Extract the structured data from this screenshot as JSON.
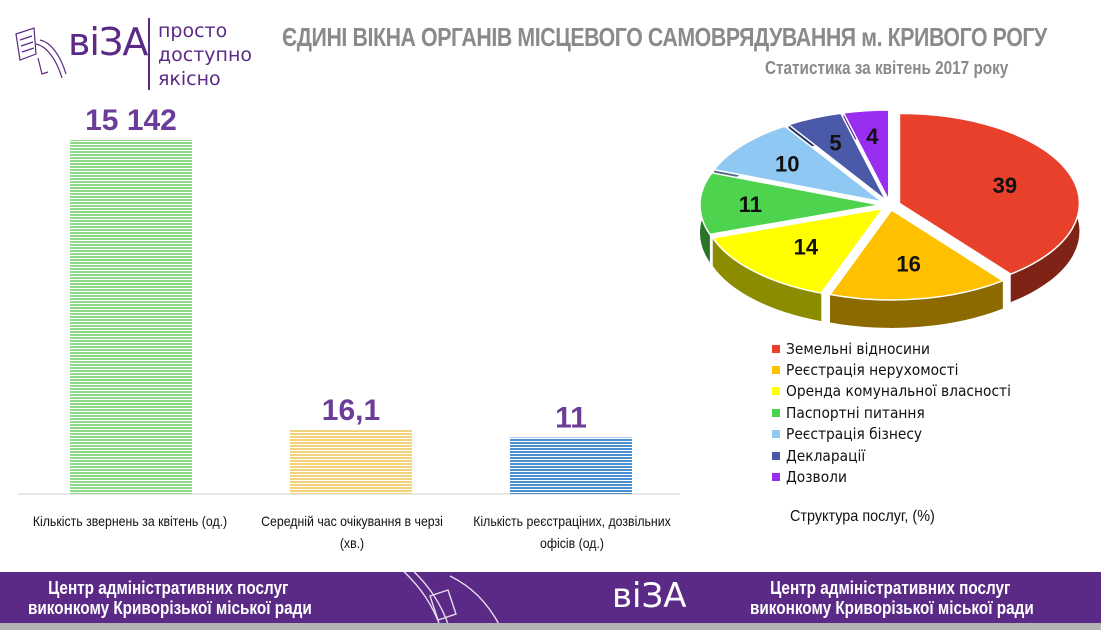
{
  "header": {
    "logo_text": "віЗА",
    "tagline": [
      "просто",
      "доступно",
      "якісно"
    ],
    "title": "ЄДИНІ ВІКНА ОРГАНІВ МІСЦЕВОГО САМОВРЯДУВАННЯ м. КРИВОГО РОГУ",
    "subtitle": "Статистика за квітень 2017 року"
  },
  "chart_data": [
    {
      "type": "bar",
      "categories": [
        [
          "Кількість звернень за квітень (од.)"
        ],
        [
          "Середній час очікування в черзі",
          "(хв.)"
        ],
        [
          "Кількість реєстраціних, дозвільних",
          "офісів (од.)"
        ]
      ],
      "values": [
        15142,
        16.1,
        11
      ],
      "value_labels": [
        "15 142",
        "16,1",
        "11"
      ],
      "colors": [
        "#8ed88a",
        "#f2d27a",
        "#4a8fcf"
      ]
    },
    {
      "type": "pie",
      "title": "Структура послуг, (%)",
      "labels": [
        "Земельні відносини",
        "Реєстрація нерухомості",
        "Оренда комунальної власності",
        "Паспортні питання",
        "Реєстрація бізнесу",
        "Декларації",
        "Дозволи"
      ],
      "values": [
        39,
        16,
        14,
        11,
        10,
        5,
        4
      ],
      "colors": [
        "#e8402a",
        "#ffc000",
        "#ffff00",
        "#4dd34d",
        "#8fc8f2",
        "#4a5aa8",
        "#9a2ef0"
      ],
      "legend_position": "bottom"
    }
  ],
  "footer": {
    "left_text": [
      "Центр адміністративних послуг",
      "виконкому Криворізької міської ради"
    ],
    "logo_text": "віЗА",
    "right_text": [
      "Центр адміністративних послуг",
      "виконкому Криворізької міської ради"
    ]
  }
}
